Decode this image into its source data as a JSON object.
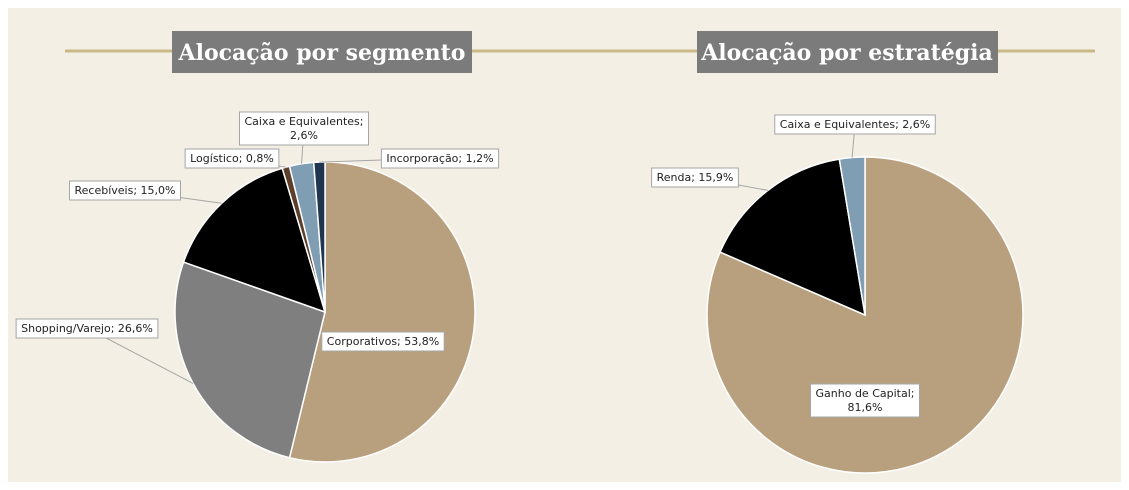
{
  "chart_data": [
    {
      "type": "pie",
      "title": "Alocação por segmento",
      "values": [
        53.8,
        26.6,
        15.0,
        0.8,
        2.6,
        1.2
      ],
      "value_labels": [
        "Corporativos; 53,8%",
        "Shopping/Varejo; 26,6%",
        "Recebíveis; 15,0%",
        "Logístico; 0,8%",
        "Caixa e Equivalentes; 2,6%",
        "Incorporação; 1,2%"
      ],
      "colors": [
        "#b8a07e",
        "#7f7f7f",
        "#000000",
        "#5b3f2a",
        "#7f9db3",
        "#1f3550"
      ]
    },
    {
      "type": "pie",
      "title": "Alocação por estratégia",
      "values": [
        81.6,
        15.9,
        2.6
      ],
      "value_labels": [
        "Ganho de Capital; 81,6%",
        "Renda; 15,9%",
        "Caixa e Equivalentes; 2,6%"
      ],
      "colors": [
        "#b8a07e",
        "#000000",
        "#7f9db3"
      ]
    }
  ]
}
